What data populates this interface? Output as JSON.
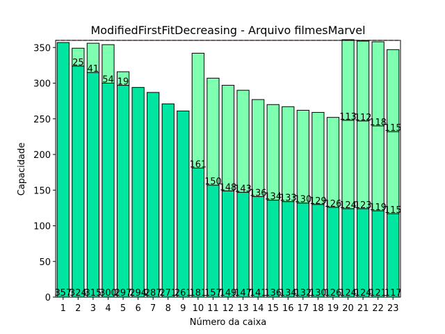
{
  "chart_data": {
    "type": "bar",
    "stacked": true,
    "title": "ModifiedFirstFitDecreasing - Arquivo filmesMarvel",
    "xlabel": "Número da caixa",
    "ylabel": "Capacidade",
    "ylim": [
      0,
      360
    ],
    "yticks": [
      0,
      50,
      100,
      150,
      200,
      250,
      300,
      350
    ],
    "capacity_line": 360,
    "grid": false,
    "categories": [
      "1",
      "2",
      "3",
      "4",
      "5",
      "6",
      "7",
      "8",
      "9",
      "10",
      "11",
      "12",
      "13",
      "14",
      "15",
      "16",
      "17",
      "18",
      "19",
      "20",
      "21",
      "22",
      "23"
    ],
    "series": [
      {
        "color": "#00e5a0",
        "values": [
          357,
          324,
          315,
          300,
          297,
          294,
          287,
          271,
          261,
          181,
          157,
          149,
          147,
          141,
          136,
          134,
          132,
          130,
          126,
          124,
          124,
          121,
          117
        ],
        "labels": [
          "357",
          "324",
          "315",
          "300",
          "297",
          "294",
          "287",
          "271",
          "261",
          "181",
          "157",
          "149",
          "147",
          "141",
          "136",
          "134",
          "132",
          "130",
          "126",
          "124",
          "124",
          "121",
          "117"
        ]
      },
      {
        "color": "#7fffb0",
        "values": [
          0,
          25,
          41,
          54,
          19,
          0,
          0,
          0,
          0,
          161,
          150,
          148,
          143,
          136,
          134,
          133,
          130,
          129,
          126,
          124,
          123,
          119,
          115
        ],
        "labels": [
          "",
          "25",
          "41",
          "54",
          "19",
          "",
          "",
          "",
          "",
          "161",
          "150",
          "148",
          "143",
          "136",
          "134",
          "133",
          "130",
          "129",
          "126",
          "124",
          "123",
          "119",
          "115"
        ]
      },
      {
        "color": "#7fffb0",
        "values": [
          0,
          0,
          0,
          0,
          0,
          0,
          0,
          0,
          0,
          0,
          0,
          0,
          0,
          0,
          0,
          0,
          0,
          0,
          0,
          113,
          112,
          118,
          115
        ],
        "labels": [
          "",
          "",
          "",
          "",
          "",
          "",
          "",
          "",
          "",
          "",
          "",
          "",
          "",
          "",
          "",
          "",
          "",
          "",
          "",
          "113",
          "112",
          "118",
          "115"
        ]
      }
    ]
  }
}
